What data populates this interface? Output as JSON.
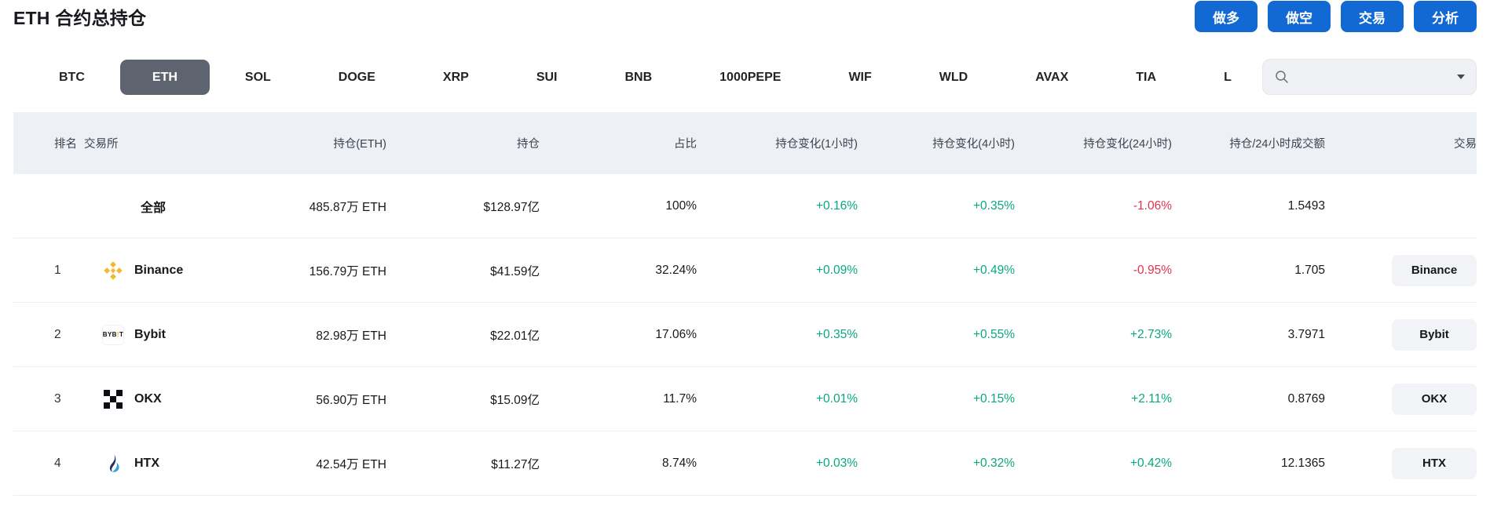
{
  "topbar": {
    "title": "ETH 合约总持仓",
    "actions": [
      {
        "label": "做多",
        "name": "long-button"
      },
      {
        "label": "做空",
        "name": "short-button"
      },
      {
        "label": "交易",
        "name": "trade-button"
      },
      {
        "label": "分析",
        "name": "analyze-button"
      }
    ]
  },
  "tabs": {
    "items": [
      {
        "label": "BTC",
        "selected": false
      },
      {
        "label": "ETH",
        "selected": true
      },
      {
        "label": "SOL",
        "selected": false
      },
      {
        "label": "DOGE",
        "selected": false
      },
      {
        "label": "XRP",
        "selected": false
      },
      {
        "label": "SUI",
        "selected": false
      },
      {
        "label": "BNB",
        "selected": false
      },
      {
        "label": "1000PEPE",
        "selected": false
      },
      {
        "label": "WIF",
        "selected": false
      },
      {
        "label": "WLD",
        "selected": false
      },
      {
        "label": "AVAX",
        "selected": false
      },
      {
        "label": "TIA",
        "selected": false
      },
      {
        "label": "L",
        "selected": false
      }
    ],
    "search": {
      "icon": "search-icon",
      "caret_icon": "chevron-down-icon",
      "value": "",
      "placeholder": ""
    }
  },
  "colors": {
    "accent_blue": "#1269d3",
    "positive": "#09a87e",
    "negative": "#e2334e",
    "tab_selected_bg": "#5d6470",
    "header_bg": "#edf0f4"
  },
  "table": {
    "columns": [
      "排名",
      "交易所",
      "持仓(ETH)",
      "持仓",
      "占比",
      "持仓变化(1小时)",
      "持仓变化(4小时)",
      "持仓变化(24小时)",
      "持仓/24小时成交额",
      "交易"
    ],
    "rows": [
      {
        "rank": "",
        "exchange": "全部",
        "logo": "",
        "oi_eth": "485.87万 ETH",
        "oi_usd": "$128.97亿",
        "share": "100%",
        "chg_1h": "+0.16%",
        "chg_4h": "+0.35%",
        "chg_24h": "-1.06%",
        "ratio": "1.5493",
        "trade": ""
      },
      {
        "rank": "1",
        "exchange": "Binance",
        "logo": "binance-logo",
        "oi_eth": "156.79万 ETH",
        "oi_usd": "$41.59亿",
        "share": "32.24%",
        "chg_1h": "+0.09%",
        "chg_4h": "+0.49%",
        "chg_24h": "-0.95%",
        "ratio": "1.705",
        "trade": "Binance"
      },
      {
        "rank": "2",
        "exchange": "Bybit",
        "logo": "bybit-logo",
        "oi_eth": "82.98万 ETH",
        "oi_usd": "$22.01亿",
        "share": "17.06%",
        "chg_1h": "+0.35%",
        "chg_4h": "+0.55%",
        "chg_24h": "+2.73%",
        "ratio": "3.7971",
        "trade": "Bybit"
      },
      {
        "rank": "3",
        "exchange": "OKX",
        "logo": "okx-logo",
        "oi_eth": "56.90万 ETH",
        "oi_usd": "$15.09亿",
        "share": "11.7%",
        "chg_1h": "+0.01%",
        "chg_4h": "+0.15%",
        "chg_24h": "+2.11%",
        "ratio": "0.8769",
        "trade": "OKX"
      },
      {
        "rank": "4",
        "exchange": "HTX",
        "logo": "htx-logo",
        "oi_eth": "42.54万 ETH",
        "oi_usd": "$11.27亿",
        "share": "8.74%",
        "chg_1h": "+0.03%",
        "chg_4h": "+0.32%",
        "chg_24h": "+0.42%",
        "ratio": "12.1365",
        "trade": "HTX"
      }
    ]
  }
}
